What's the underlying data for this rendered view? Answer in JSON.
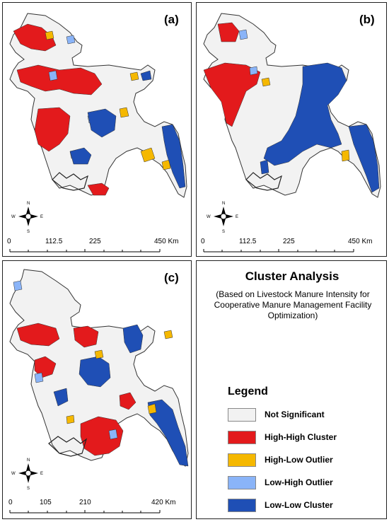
{
  "panels": [
    {
      "letter": "(a)",
      "scale": [
        "0",
        "112.5",
        "225",
        "450 Km"
      ]
    },
    {
      "letter": "(b)",
      "scale": [
        "0",
        "112.5",
        "225",
        "450 Km"
      ]
    },
    {
      "letter": "(c)",
      "scale": [
        "0",
        "105",
        "210",
        "420 Km"
      ]
    }
  ],
  "compass": {
    "n": "N",
    "s": "S",
    "e": "E",
    "w": "W"
  },
  "info": {
    "title": "Cluster Analysis",
    "subtitle": "(Based on Livestock Manure Intensity for Cooperative Manure Management Facility Optimization)"
  },
  "legend": {
    "title": "Legend",
    "items": [
      {
        "label": "Not Significant",
        "color": "#f2f2f2"
      },
      {
        "label": "High-High Cluster",
        "color": "#e31a1c"
      },
      {
        "label": "High-Low Outlier",
        "color": "#f5b800"
      },
      {
        "label": "Low-High Outlier",
        "color": "#8ab4f8"
      },
      {
        "label": "Low-Low Cluster",
        "color": "#1f4fb5"
      }
    ]
  },
  "colors": {
    "background": "#f2f2f2",
    "boundary": "#333333",
    "high_high": "#e31a1c",
    "high_low": "#f5b800",
    "low_high": "#8ab4f8",
    "low_low": "#1f4fb5"
  }
}
